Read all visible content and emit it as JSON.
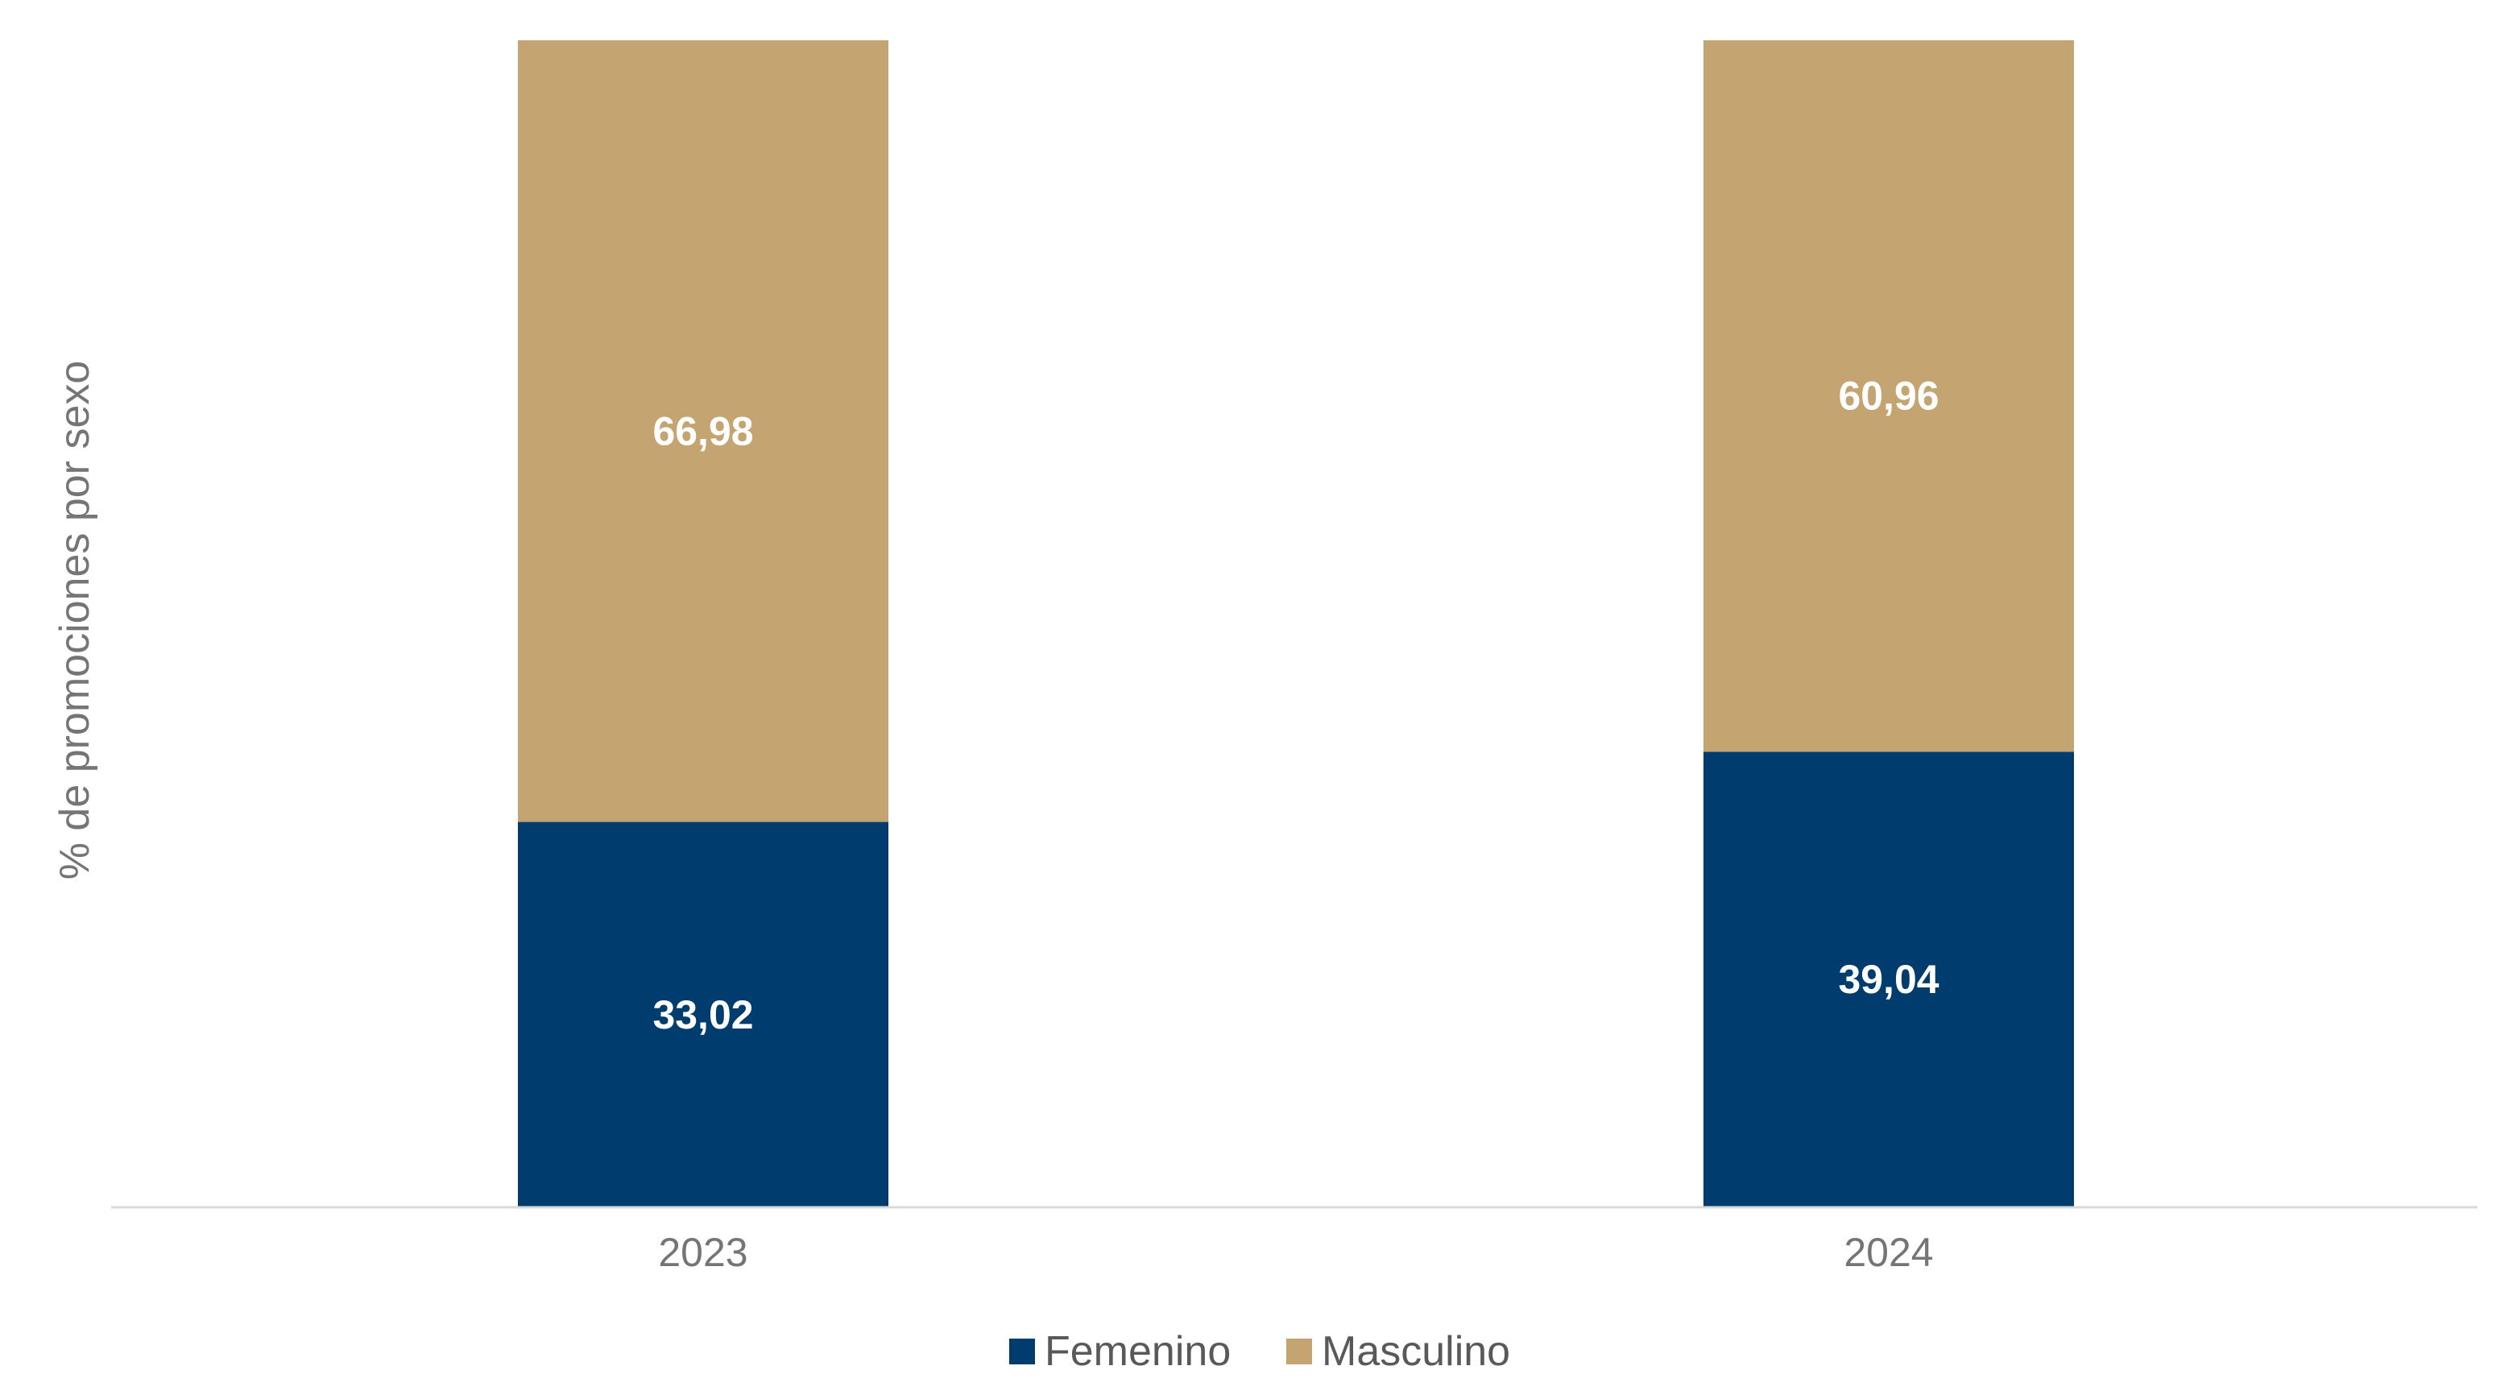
{
  "chart_data": {
    "type": "bar",
    "stacked": true,
    "categories": [
      "2023",
      "2024"
    ],
    "series": [
      {
        "name": "Femenino",
        "values": [
          33.02,
          39.04
        ],
        "labels": [
          "33,02",
          "39,04"
        ],
        "color": "#003d6e"
      },
      {
        "name": "Masculino",
        "values": [
          66.98,
          60.96
        ],
        "labels": [
          "66,98",
          "60,96"
        ],
        "color": "#c4a571"
      }
    ],
    "title": "",
    "xlabel": "",
    "ylabel": "% de promociones por sexo",
    "ylim": [
      0,
      100
    ],
    "grid": false,
    "legend_position": "bottom-center"
  }
}
